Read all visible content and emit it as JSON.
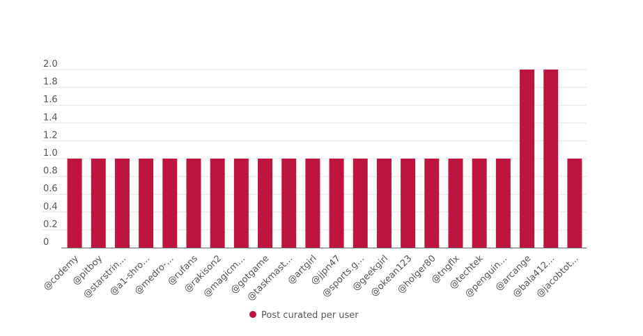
{
  "chart_data": {
    "type": "bar",
    "categories": [
      "@codemy",
      "@pitboy",
      "@starstrin…",
      "@a1-shro…",
      "@medro-…",
      "@rufans",
      "@rakison2",
      "@magicm…",
      "@gotgame",
      "@taskmast…",
      "@artgirl",
      "@jjpn47",
      "@sports.g…",
      "@geekgirl",
      "@okean123",
      "@holger80",
      "@tngflx",
      "@techtek",
      "@penguin…",
      "@arcange",
      "@bala412…",
      "@jacobtot…"
    ],
    "series": [
      {
        "name": "Post curated per user",
        "values": [
          1,
          1,
          1,
          1,
          1,
          1,
          1,
          1,
          1,
          1,
          1,
          1,
          1,
          1,
          1,
          1,
          1,
          1,
          1,
          2,
          2,
          1
        ]
      }
    ],
    "yticks": [
      "0",
      "0.2",
      "0.4",
      "0.6",
      "0.8",
      "1.0",
      "1.2",
      "1.4",
      "1.6",
      "1.8",
      "2.0"
    ],
    "ylim": [
      0,
      2
    ],
    "grid": true,
    "legend_position": "bottom-center",
    "colors": {
      "bar": "#be1540",
      "grid": "#e6e6e6",
      "axis": "#666666"
    }
  }
}
